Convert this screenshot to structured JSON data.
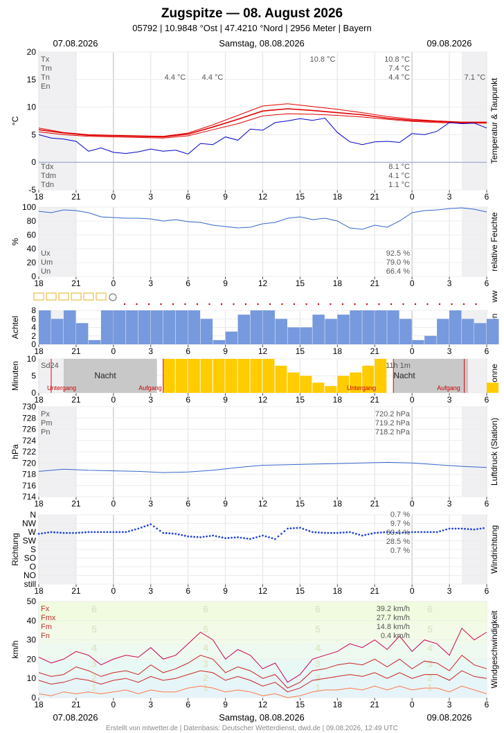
{
  "header": {
    "title": "Zugspitze  —  08. August 2026",
    "subtitle": "05792  |  10.9848 °Ost  |  47.4210 °Nord  |  2956 Meter  |  Bayern",
    "date_left": "07.08.2026",
    "date_center": "Samstag, 08.08.2026",
    "date_right": "09.08.2026"
  },
  "footer": "Erstellt von mtwetter.de | Datenbasis: Deutscher Wetterdienst, dwd.de | 09.08.2026, 12:49 UTC",
  "x_ticks": [
    "18",
    "21",
    "0",
    "3",
    "6",
    "9",
    "12",
    "15",
    "18",
    "21",
    "0",
    "3",
    "6"
  ],
  "colors": {
    "temp": "#e00000",
    "dew": "#0000cc",
    "humidity": "#3366cc",
    "cloud": "#7799dd",
    "sun": "#ffcc00",
    "pressure": "#3366cc",
    "dir": "#2244dd",
    "gust": "#cc0055",
    "mean": "#cc2222",
    "min": "#ff7744"
  },
  "chart_data": [
    {
      "type": "line",
      "ylabel": "°C",
      "side_label": "Temperatur & Taupunkt",
      "ylim": [
        -5,
        20
      ],
      "y_ticks": [
        "20",
        "15",
        "10",
        "5",
        "0",
        "-5"
      ],
      "stats_top": [
        [
          "Tx",
          "10.8 °C"
        ],
        [
          "Tm",
          "7.4 °C"
        ],
        [
          "Tn",
          "4.4 °C"
        ],
        [
          "En",
          ""
        ]
      ],
      "stats_bottom": [
        [
          "Tdx",
          "8.1 °C"
        ],
        [
          "Tdm",
          "4.1 °C"
        ],
        [
          "Tdn",
          "1.1 °C"
        ]
      ],
      "annotations": [
        "10.8 °C",
        "4.4 °C",
        "4.4 °C",
        "7.1 °C"
      ],
      "series": [
        {
          "key": "temp_max",
          "x": [
            18,
            20,
            22,
            24,
            26,
            28,
            30,
            32,
            34,
            36,
            38,
            40,
            42,
            44,
            46,
            48,
            50,
            52,
            54
          ],
          "values": [
            6.2,
            5.4,
            5.0,
            4.9,
            4.8,
            4.7,
            5.3,
            6.8,
            8.5,
            10.2,
            10.6,
            10.1,
            9.6,
            9.0,
            8.3,
            7.8,
            7.5,
            7.3,
            7.3
          ]
        },
        {
          "key": "temp_mean",
          "x": [
            18,
            20,
            22,
            24,
            26,
            28,
            30,
            32,
            34,
            36,
            38,
            40,
            42,
            44,
            46,
            48,
            50,
            52,
            54
          ],
          "values": [
            5.9,
            5.3,
            4.9,
            4.8,
            4.7,
            4.6,
            5.1,
            6.4,
            7.8,
            9.3,
            9.7,
            9.4,
            9.0,
            8.6,
            8.0,
            7.6,
            7.4,
            7.2,
            7.2
          ]
        },
        {
          "key": "temp_min",
          "x": [
            18,
            20,
            22,
            24,
            26,
            28,
            30,
            32,
            34,
            36,
            38,
            40,
            42,
            44,
            46,
            48,
            50,
            52,
            54
          ],
          "values": [
            5.5,
            5.0,
            4.7,
            4.6,
            4.5,
            4.4,
            4.8,
            5.9,
            7.0,
            8.4,
            8.8,
            8.7,
            8.5,
            8.2,
            7.8,
            7.4,
            7.2,
            7.1,
            7.1
          ]
        },
        {
          "key": "dewpoint",
          "x": [
            18,
            19,
            20,
            21,
            22,
            23,
            24,
            25,
            26,
            27,
            28,
            29,
            30,
            31,
            32,
            33,
            34,
            35,
            36,
            37,
            38,
            39,
            40,
            41,
            42,
            43,
            44,
            45,
            46,
            47,
            48,
            49,
            50,
            51,
            52,
            53,
            54
          ],
          "values": [
            5.0,
            4.4,
            4.2,
            3.8,
            2.0,
            2.6,
            1.8,
            1.6,
            1.9,
            2.4,
            2.0,
            2.2,
            1.5,
            3.4,
            3.2,
            4.6,
            4.0,
            6.0,
            5.8,
            7.2,
            7.5,
            7.9,
            7.6,
            8.0,
            5.4,
            3.7,
            3.2,
            3.7,
            3.8,
            3.6,
            5.2,
            5.0,
            5.6,
            7.2,
            7.0,
            7.1,
            6.2
          ]
        }
      ]
    },
    {
      "type": "line",
      "ylabel": "%",
      "side_label": "relative Feuchte",
      "ylim": [
        0,
        100
      ],
      "y_ticks": [
        "100",
        "80",
        "60",
        "40",
        "20",
        "0"
      ],
      "stats": [
        [
          "Ux",
          "92.5 %"
        ],
        [
          "Um",
          "79.0 %"
        ],
        [
          "Un",
          "66.4 %"
        ]
      ],
      "x": [
        18,
        19,
        20,
        21,
        22,
        23,
        24,
        25,
        26,
        27,
        28,
        29,
        30,
        31,
        32,
        33,
        34,
        35,
        36,
        37,
        38,
        39,
        40,
        41,
        42,
        43,
        44,
        45,
        46,
        47,
        48,
        49,
        50,
        51,
        52,
        53,
        54
      ],
      "values": [
        94,
        92,
        96,
        95,
        92,
        86,
        85,
        84,
        84,
        83,
        80,
        82,
        79,
        78,
        74,
        72,
        70,
        71,
        76,
        78,
        84,
        86,
        82,
        84,
        80,
        70,
        68,
        74,
        71,
        80,
        92,
        95,
        96,
        98,
        99,
        97,
        93
      ]
    },
    {
      "type": "bar",
      "ylabel": "Achtel",
      "side_label": "Wolken",
      "ylim": [
        0,
        8
      ],
      "y_ticks": [
        "8",
        "6",
        "4",
        "2",
        "0"
      ],
      "ww_label": "ww",
      "x": [
        18,
        19,
        20,
        21,
        22,
        23,
        24,
        25,
        26,
        27,
        28,
        29,
        30,
        31,
        32,
        33,
        34,
        35,
        36,
        37,
        38,
        39,
        40,
        41,
        42,
        43,
        44,
        45,
        46,
        47,
        48,
        49,
        50,
        51,
        52,
        53,
        54
      ],
      "values": [
        8,
        6,
        8,
        5,
        1,
        8,
        8,
        8,
        8,
        8,
        8,
        8,
        8,
        6,
        1,
        3,
        7,
        8,
        8,
        6,
        4,
        4,
        7,
        6,
        7,
        8,
        8,
        8,
        8,
        6,
        1,
        2,
        6,
        8,
        6,
        5,
        6
      ]
    },
    {
      "type": "bar",
      "ylabel": "Minuten",
      "side_label": "Sonne",
      "ylim": [
        0,
        10
      ],
      "y_ticks": [
        "10",
        "5",
        "0"
      ],
      "stats": [
        "Sd24",
        "11h 1m"
      ],
      "labels": [
        "Nacht",
        "Nacht",
        "Untergang",
        "Aufgang",
        "Untergang",
        "Aufgang"
      ],
      "x": [
        28,
        29,
        30,
        31,
        32,
        33,
        34,
        35,
        36,
        37,
        38,
        39,
        40,
        41,
        42,
        43,
        44,
        45,
        46,
        47,
        48,
        49,
        50,
        51,
        52,
        53,
        54
      ],
      "values": [
        10,
        10,
        10,
        10,
        10,
        10,
        10,
        10,
        10,
        8,
        6,
        5,
        3,
        2,
        5,
        6,
        8,
        10,
        0,
        0,
        0,
        0,
        0,
        0,
        0,
        0,
        3
      ]
    },
    {
      "type": "line",
      "ylabel": "hPa",
      "side_label": "Luftdruck (Station)",
      "ylim": [
        714,
        730
      ],
      "y_ticks": [
        "730",
        "728",
        "726",
        "724",
        "722",
        "720",
        "718",
        "716",
        "714"
      ],
      "stats": [
        [
          "Px",
          "720.2 hPa"
        ],
        [
          "Pm",
          "719.2 hPa"
        ],
        [
          "Pn",
          "718.2 hPa"
        ]
      ],
      "x": [
        18,
        20,
        22,
        24,
        26,
        28,
        30,
        32,
        34,
        36,
        38,
        40,
        42,
        44,
        46,
        48,
        50,
        52,
        54
      ],
      "values": [
        718.5,
        718.9,
        718.7,
        718.6,
        718.5,
        718.3,
        718.4,
        718.7,
        719.2,
        719.6,
        719.7,
        719.8,
        719.9,
        720.0,
        720.1,
        720.0,
        719.7,
        719.4,
        719.2
      ]
    },
    {
      "type": "scatter",
      "ylabel": "Richtung",
      "side_label": "Windrichtung",
      "y_ticks": [
        "N",
        "NW",
        "W",
        "SW",
        "S",
        "SO",
        "O",
        "NO",
        "still"
      ],
      "stats": [
        "0.7 %",
        "9.7 %",
        "60.4 %",
        "28.5 %",
        "0.7 %"
      ],
      "x": [
        18,
        19,
        20,
        21,
        22,
        23,
        24,
        25,
        26,
        27,
        28,
        29,
        30,
        31,
        32,
        33,
        34,
        35,
        36,
        37,
        38,
        39,
        40,
        41,
        42,
        43,
        44,
        45,
        46,
        47,
        48,
        49,
        50,
        51,
        52,
        53,
        54
      ],
      "values": [
        2.2,
        2.0,
        2.1,
        2.1,
        2.0,
        2.0,
        2.0,
        2.0,
        1.6,
        1.1,
        2.1,
        2.2,
        2.5,
        2.6,
        2.4,
        2.7,
        2.6,
        2.8,
        2.4,
        2.8,
        1.6,
        1.5,
        2.0,
        2.1,
        2.1,
        2.0,
        2.4,
        2.1,
        2.0,
        2.1,
        2.0,
        2.0,
        2.0,
        1.6,
        1.6,
        1.7,
        1.5
      ]
    },
    {
      "type": "line",
      "ylabel": "km/h",
      "side_label": "Windgeschwindigkeit",
      "ylim": [
        0,
        50
      ],
      "y_ticks": [
        "50",
        "40",
        "30",
        "20",
        "10",
        "0"
      ],
      "stats": [
        [
          "Fx",
          "39.2 km/h"
        ],
        [
          "Fmx",
          "27.7 km/h"
        ],
        [
          "Fm",
          "14.8 km/h"
        ],
        [
          "Fn",
          "0.4 km/h"
        ]
      ],
      "bft_labels": [
        "6",
        "5",
        "4",
        "3",
        "2",
        "1"
      ],
      "x": [
        18,
        19,
        20,
        21,
        22,
        23,
        24,
        25,
        26,
        27,
        28,
        29,
        30,
        31,
        32,
        33,
        34,
        35,
        36,
        37,
        38,
        39,
        40,
        41,
        42,
        43,
        44,
        45,
        46,
        47,
        48,
        49,
        50,
        51,
        52,
        53,
        54
      ],
      "series": [
        {
          "key": "gust",
          "values": [
            21,
            18,
            20,
            24,
            22,
            17,
            20,
            22,
            21,
            26,
            20,
            22,
            28,
            34,
            30,
            20,
            25,
            22,
            15,
            18,
            8,
            12,
            20,
            22,
            24,
            28,
            26,
            30,
            25,
            32,
            24,
            30,
            28,
            22,
            36,
            30,
            34
          ]
        },
        {
          "key": "mean_max",
          "values": [
            13,
            11,
            12,
            16,
            14,
            11,
            13,
            14,
            12,
            17,
            13,
            15,
            18,
            22,
            20,
            13,
            16,
            14,
            10,
            12,
            5,
            8,
            14,
            15,
            17,
            18,
            17,
            20,
            16,
            20,
            15,
            19,
            18,
            14,
            22,
            17,
            15
          ]
        },
        {
          "key": "mean",
          "values": [
            9,
            7,
            8,
            10,
            9,
            7,
            9,
            10,
            8,
            11,
            9,
            10,
            12,
            14,
            13,
            9,
            11,
            9,
            6,
            8,
            3,
            5,
            9,
            10,
            11,
            12,
            11,
            13,
            10,
            13,
            10,
            12,
            12,
            9,
            14,
            11,
            10
          ]
        },
        {
          "key": "min",
          "values": [
            2,
            1,
            3,
            2,
            3,
            2,
            3,
            4,
            2,
            4,
            3,
            3,
            5,
            6,
            5,
            3,
            4,
            3,
            1,
            2,
            0,
            1,
            3,
            4,
            4,
            5,
            4,
            6,
            4,
            6,
            4,
            5,
            5,
            3,
            6,
            4,
            2
          ]
        }
      ]
    }
  ]
}
